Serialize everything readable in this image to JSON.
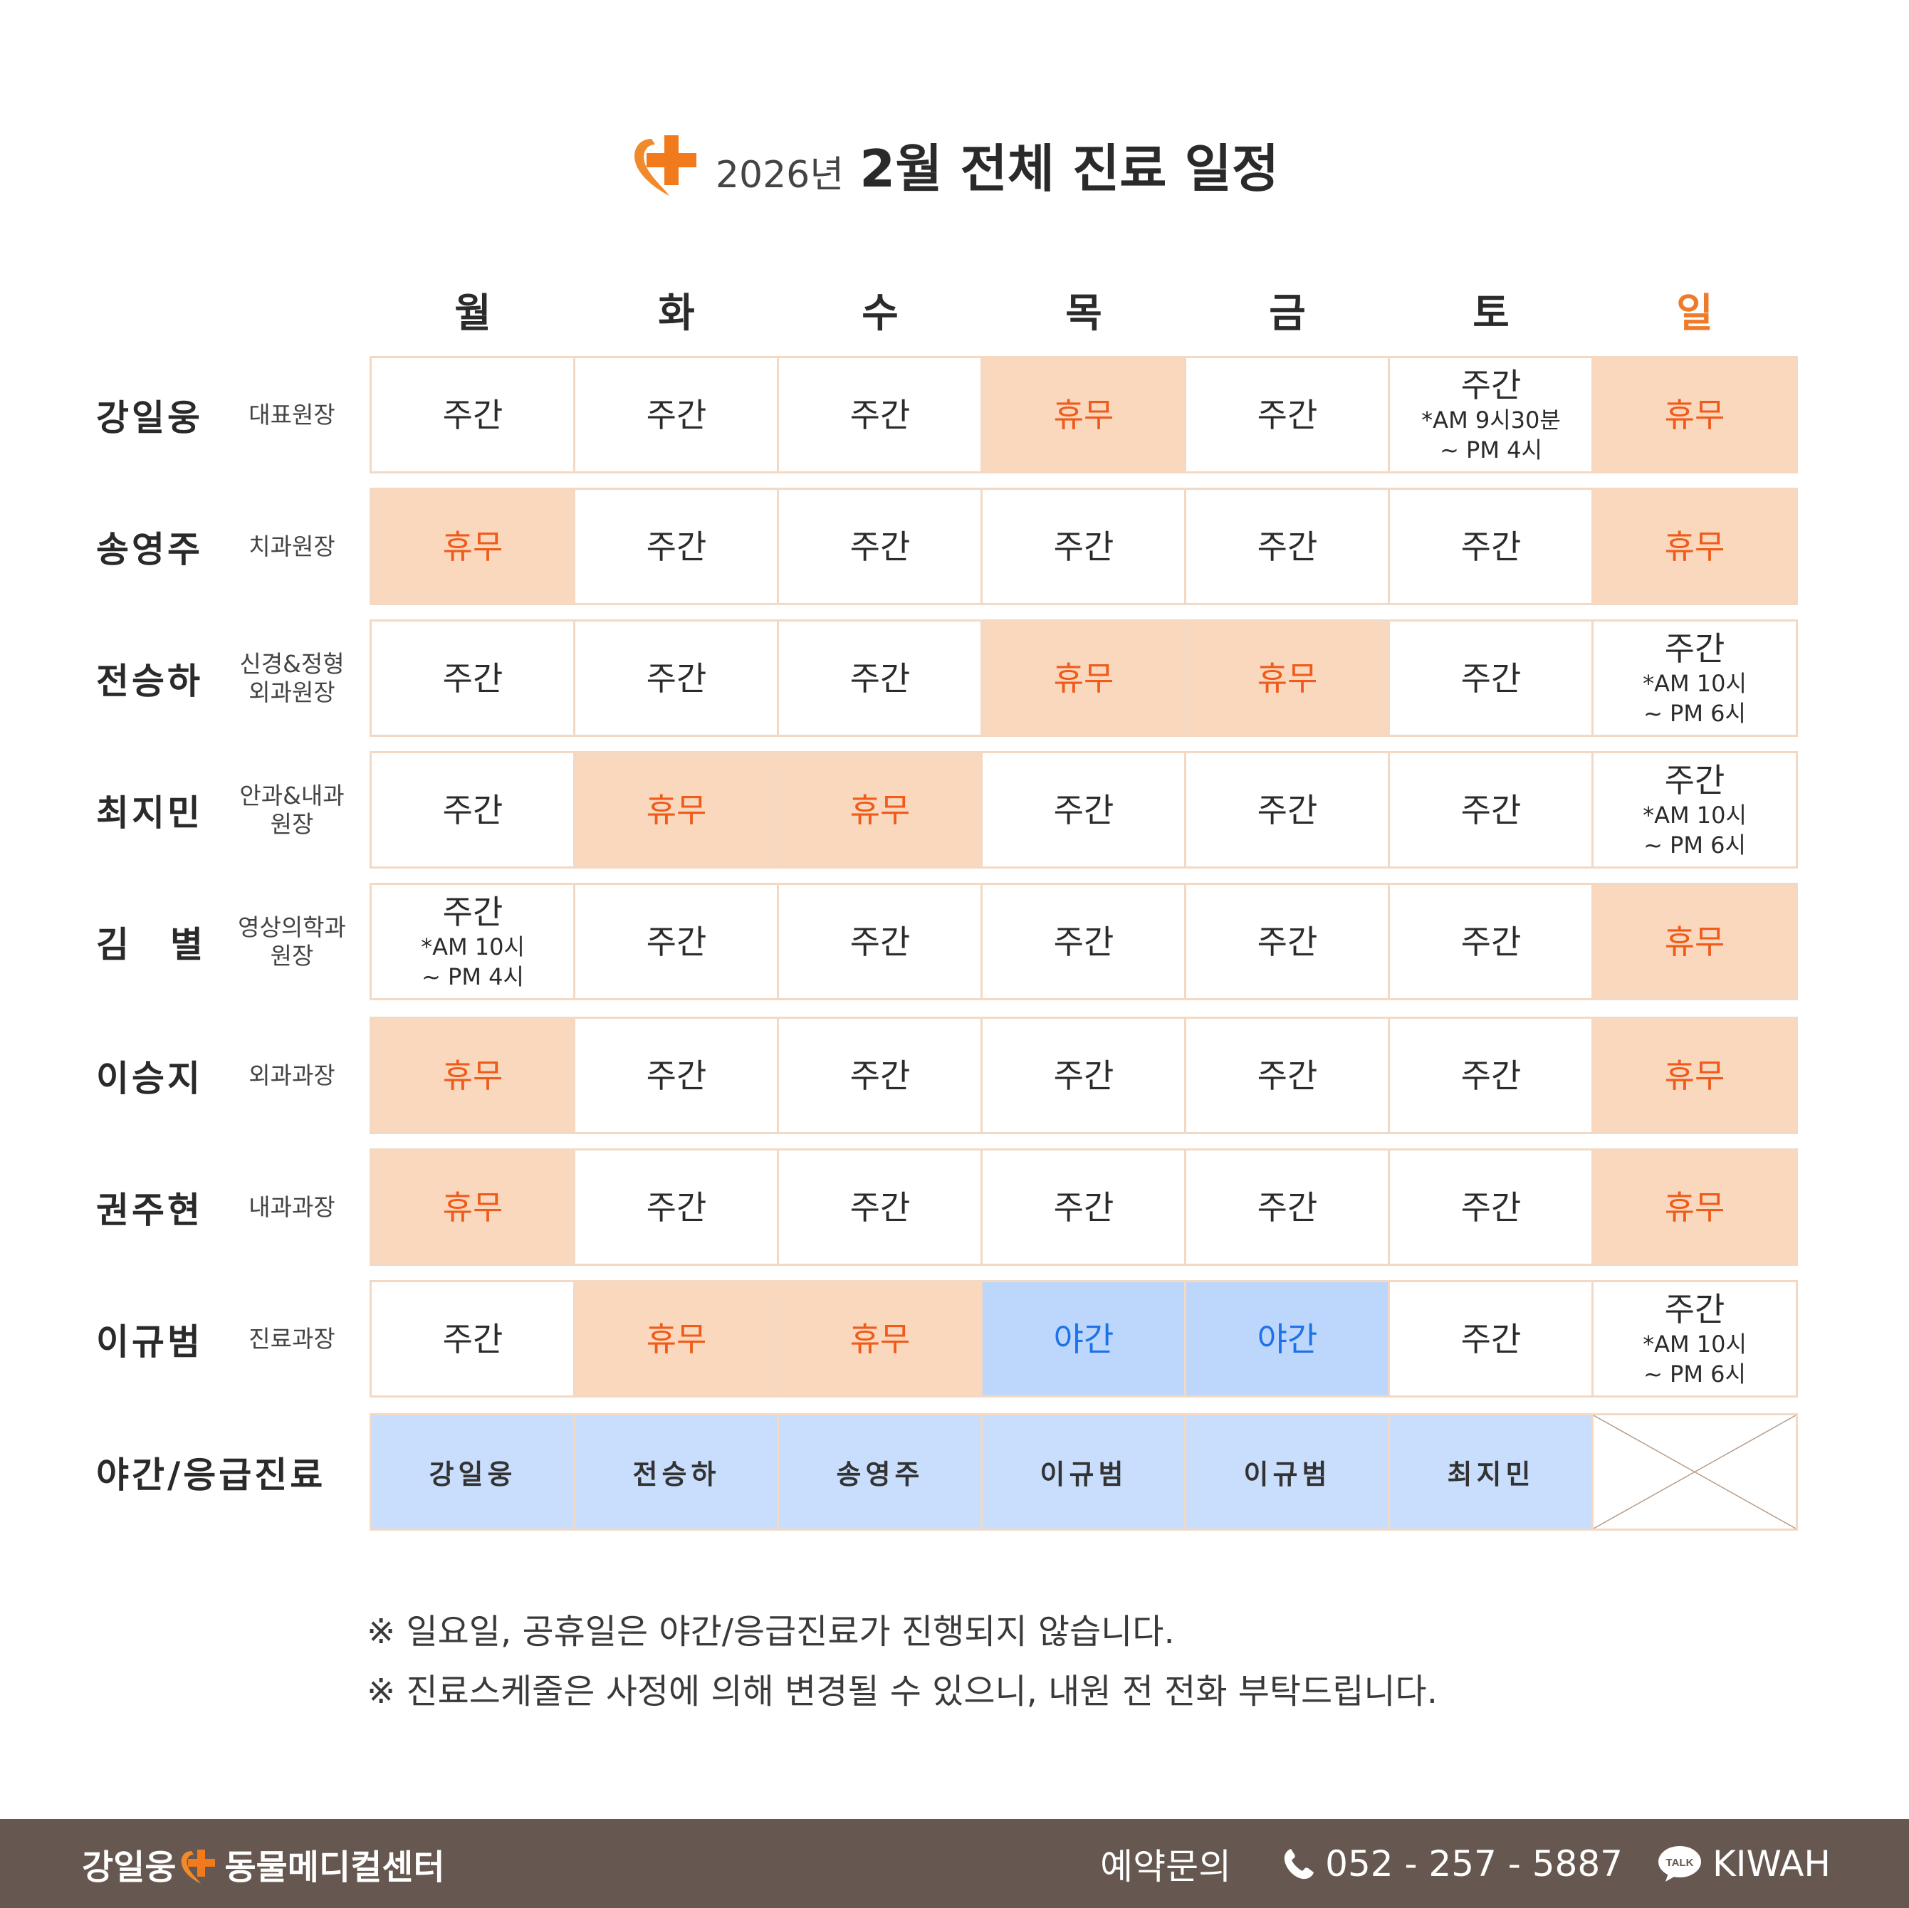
{
  "title": {
    "year": "2026년",
    "main": "2월 전체 진료 일정"
  },
  "days": [
    "월",
    "화",
    "수",
    "목",
    "금",
    "토",
    "일"
  ],
  "doctors": [
    {
      "name": "강일웅",
      "role": "대표원장",
      "schedule": [
        {
          "type": "day",
          "text": "주간"
        },
        {
          "type": "day",
          "text": "주간"
        },
        {
          "type": "day",
          "text": "주간"
        },
        {
          "type": "off",
          "text": "휴무"
        },
        {
          "type": "day",
          "text": "주간"
        },
        {
          "type": "day",
          "text": "주간",
          "sub1": "*AM 9시30분",
          "sub2": "~ PM 4시"
        },
        {
          "type": "off",
          "text": "휴무"
        }
      ]
    },
    {
      "name": "송영주",
      "role": "치과원장",
      "schedule": [
        {
          "type": "off",
          "text": "휴무"
        },
        {
          "type": "day",
          "text": "주간"
        },
        {
          "type": "day",
          "text": "주간"
        },
        {
          "type": "day",
          "text": "주간"
        },
        {
          "type": "day",
          "text": "주간"
        },
        {
          "type": "day",
          "text": "주간"
        },
        {
          "type": "off",
          "text": "휴무"
        }
      ]
    },
    {
      "name": "전승하",
      "role": "신경&정형 외과원장",
      "schedule": [
        {
          "type": "day",
          "text": "주간"
        },
        {
          "type": "day",
          "text": "주간"
        },
        {
          "type": "day",
          "text": "주간"
        },
        {
          "type": "off",
          "text": "휴무"
        },
        {
          "type": "off",
          "text": "휴무"
        },
        {
          "type": "day",
          "text": "주간"
        },
        {
          "type": "day",
          "text": "주간",
          "sub1": "*AM 10시",
          "sub2": "~ PM 6시"
        }
      ]
    },
    {
      "name": "최지민",
      "role": "안과&내과 원장",
      "schedule": [
        {
          "type": "day",
          "text": "주간"
        },
        {
          "type": "off",
          "text": "휴무"
        },
        {
          "type": "off",
          "text": "휴무"
        },
        {
          "type": "day",
          "text": "주간"
        },
        {
          "type": "day",
          "text": "주간"
        },
        {
          "type": "day",
          "text": "주간"
        },
        {
          "type": "day",
          "text": "주간",
          "sub1": "*AM 10시",
          "sub2": "~ PM 6시"
        }
      ]
    },
    {
      "name": "김　별",
      "role": "영상의학과 원장",
      "schedule": [
        {
          "type": "day",
          "text": "주간",
          "sub1": "*AM 10시",
          "sub2": "~ PM 4시"
        },
        {
          "type": "day",
          "text": "주간"
        },
        {
          "type": "day",
          "text": "주간"
        },
        {
          "type": "day",
          "text": "주간"
        },
        {
          "type": "day",
          "text": "주간"
        },
        {
          "type": "day",
          "text": "주간"
        },
        {
          "type": "off",
          "text": "휴무"
        }
      ]
    },
    {
      "name": "이승지",
      "role": "외과과장",
      "schedule": [
        {
          "type": "off",
          "text": "휴무"
        },
        {
          "type": "day",
          "text": "주간"
        },
        {
          "type": "day",
          "text": "주간"
        },
        {
          "type": "day",
          "text": "주간"
        },
        {
          "type": "day",
          "text": "주간"
        },
        {
          "type": "day",
          "text": "주간"
        },
        {
          "type": "off",
          "text": "휴무"
        }
      ]
    },
    {
      "name": "권주현",
      "role": "내과과장",
      "schedule": [
        {
          "type": "off",
          "text": "휴무"
        },
        {
          "type": "day",
          "text": "주간"
        },
        {
          "type": "day",
          "text": "주간"
        },
        {
          "type": "day",
          "text": "주간"
        },
        {
          "type": "day",
          "text": "주간"
        },
        {
          "type": "day",
          "text": "주간"
        },
        {
          "type": "off",
          "text": "휴무"
        }
      ]
    },
    {
      "name": "이규범",
      "role": "진료과장",
      "schedule": [
        {
          "type": "day",
          "text": "주간"
        },
        {
          "type": "off",
          "text": "휴무"
        },
        {
          "type": "off",
          "text": "휴무"
        },
        {
          "type": "night",
          "text": "야간"
        },
        {
          "type": "night",
          "text": "야간"
        },
        {
          "type": "day",
          "text": "주간"
        },
        {
          "type": "day",
          "text": "주간",
          "sub1": "*AM 10시",
          "sub2": "~ PM 6시"
        }
      ]
    }
  ],
  "emergency": {
    "label": "야간/응급진료",
    "names": [
      "강일웅",
      "전승하",
      "송영주",
      "이규범",
      "이규범",
      "최지민"
    ]
  },
  "notes": [
    "※ 일요일, 공휴일은 야간/응급진료가 진행되지 않습니다.",
    "※ 진료스케줄은 사정에 의해 변경될 수 있으니, 내원 전 전화 부탁드립니다."
  ],
  "footer": {
    "brand_left": "강일웅",
    "brand_right": "동물메디컬센터",
    "reservation_label": "예약문의",
    "phone": "052 - 257 - 5887",
    "talk_badge": "TALK",
    "talk_id": "KIWAH"
  },
  "colors": {
    "accent": "#ef7b2a",
    "off_bg": "#f9d8bd",
    "off_text": "#f05a1a",
    "night_bg": "#bcd7fb",
    "night_text": "#1e72e8",
    "footer_bg": "#665850"
  }
}
